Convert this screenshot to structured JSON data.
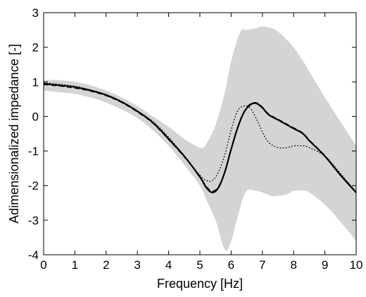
{
  "chart_data": {
    "type": "line",
    "title": "",
    "xlabel": "Frequency [Hz]",
    "ylabel": "Adimensionalized impedance [-]",
    "xlim": [
      0,
      10
    ],
    "ylim": [
      -4,
      3
    ],
    "xticks": [
      0,
      1,
      2,
      3,
      4,
      5,
      6,
      7,
      8,
      9,
      10
    ],
    "yticks": [
      -4,
      -3,
      -2,
      -1,
      0,
      1,
      2,
      3
    ],
    "grid": false,
    "legend": "none",
    "band": {
      "color": "#d4d4d4",
      "x": [
        0,
        0.5,
        1,
        1.5,
        2,
        2.5,
        3,
        3.5,
        4,
        4.5,
        5,
        5.2,
        5.5,
        5.8,
        6,
        6.3,
        6.5,
        6.8,
        7,
        7.3,
        7.5,
        7.8,
        8,
        8.3,
        8.5,
        9,
        9.5,
        10
      ],
      "upper": [
        1.05,
        1.05,
        1.0,
        0.9,
        0.75,
        0.55,
        0.3,
        0.0,
        -0.3,
        -0.65,
        -0.9,
        -0.8,
        -0.25,
        0.7,
        1.6,
        2.45,
        2.5,
        2.55,
        2.6,
        2.55,
        2.45,
        2.2,
        2.0,
        1.6,
        1.3,
        0.55,
        -0.15,
        -0.85
      ],
      "lower": [
        0.75,
        0.7,
        0.65,
        0.55,
        0.4,
        0.2,
        -0.05,
        -0.4,
        -0.85,
        -1.4,
        -2.0,
        -2.4,
        -3.0,
        -3.85,
        -3.6,
        -2.6,
        -2.15,
        -2.15,
        -2.2,
        -2.3,
        -2.3,
        -2.25,
        -2.15,
        -2.15,
        -2.2,
        -2.55,
        -3.05,
        -3.6
      ]
    },
    "series": [
      {
        "style": "solid",
        "color": "#000000",
        "x": [
          0,
          0.5,
          1,
          1.5,
          2,
          2.5,
          3,
          3.5,
          4,
          4.5,
          5,
          5.2,
          5.4,
          5.6,
          5.8,
          6,
          6.2,
          6.4,
          6.6,
          6.8,
          7,
          7.2,
          7.5,
          7.8,
          8,
          8.3,
          8.5,
          9,
          9.5,
          10
        ],
        "y": [
          0.95,
          0.9,
          0.85,
          0.75,
          0.62,
          0.42,
          0.15,
          -0.18,
          -0.65,
          -1.15,
          -1.75,
          -2.05,
          -2.2,
          -2.05,
          -1.6,
          -0.95,
          -0.35,
          0.1,
          0.33,
          0.38,
          0.25,
          0.05,
          -0.1,
          -0.25,
          -0.35,
          -0.5,
          -0.7,
          -1.15,
          -1.7,
          -2.2
        ]
      },
      {
        "style": "dashed",
        "color": "#000000",
        "x": [
          0,
          0.5,
          1,
          1.5,
          2,
          2.5,
          3,
          3.5,
          4,
          4.5,
          5,
          5.2,
          5.4,
          5.6,
          5.8,
          6,
          6.2,
          6.4,
          6.6,
          6.8,
          7,
          7.2,
          7.5,
          7.8,
          8,
          8.3,
          8.5,
          9,
          9.5,
          10
        ],
        "y": [
          0.92,
          0.88,
          0.82,
          0.73,
          0.6,
          0.4,
          0.13,
          -0.2,
          -0.67,
          -1.17,
          -1.73,
          -2.02,
          -2.16,
          -2.02,
          -1.58,
          -0.93,
          -0.33,
          0.12,
          0.35,
          0.4,
          0.27,
          0.07,
          -0.08,
          -0.23,
          -0.33,
          -0.48,
          -0.68,
          -1.13,
          -1.68,
          -2.18
        ]
      },
      {
        "style": "dotted",
        "color": "#000000",
        "x": [
          0,
          0.5,
          1,
          1.5,
          2,
          2.5,
          3,
          3.5,
          4,
          4.5,
          5,
          5.2,
          5.4,
          5.6,
          5.8,
          6,
          6.2,
          6.4,
          6.6,
          6.8,
          7,
          7.2,
          7.5,
          7.8,
          8,
          8.3,
          8.5,
          9,
          9.5,
          10
        ],
        "y": [
          0.97,
          0.93,
          0.87,
          0.77,
          0.63,
          0.43,
          0.16,
          -0.15,
          -0.6,
          -1.15,
          -1.7,
          -1.85,
          -1.85,
          -1.6,
          -1.1,
          -0.4,
          0.15,
          0.3,
          0.25,
          -0.05,
          -0.45,
          -0.75,
          -0.9,
          -0.9,
          -0.85,
          -0.85,
          -0.9,
          -1.15,
          -1.65,
          -2.2
        ]
      }
    ]
  }
}
